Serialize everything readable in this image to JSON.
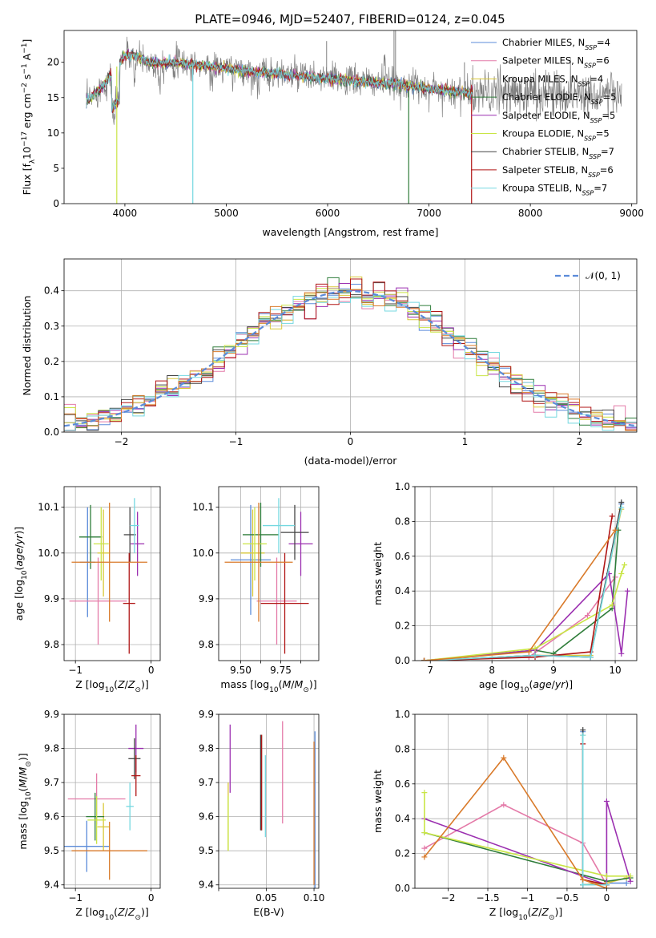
{
  "figure": {
    "title": "PLATE=0946, MJD=52407, FIBERID=0124, z=0.045"
  },
  "colors": {
    "Chabrier MILES": "#5b8bd9",
    "Salpeter MILES": "#e47aa8",
    "Kroupa MILES": "#d9c83a",
    "Chabrier ELODIE": "#2f7d3a",
    "Salpeter ELODIE": "#9b2fb0",
    "Kroupa ELODIE": "#c9e545",
    "Chabrier STELIB": "#444444",
    "Salpeter STELIB": "#b01515",
    "Kroupa STELIB": "#74d8e0",
    "orange": "#d97a2a",
    "gray_data": "#808080",
    "normal_curve": "#5b8bd9"
  },
  "chart_data": [
    {
      "id": "spectrum",
      "type": "line",
      "xlabel": "wavelength [Angstrom, rest frame]",
      "ylabel": "Flux [f_λ 10^-17 erg cm^-2 s^-1 A^-1]",
      "xlim": [
        3400,
        9050
      ],
      "ylim": [
        0,
        24.5
      ],
      "xticks": [
        4000,
        5000,
        6000,
        7000,
        8000,
        9000
      ],
      "yticks": [
        0,
        5,
        10,
        15,
        20
      ],
      "legend_position": "upper right",
      "legend": [
        {
          "name": "Chabrier MILES",
          "nssp": "4"
        },
        {
          "name": "Salpeter MILES",
          "nssp": "6"
        },
        {
          "name": "Kroupa MILES",
          "nssp": "4"
        },
        {
          "name": "Chabrier ELODIE",
          "nssp": "5"
        },
        {
          "name": "Salpeter ELODIE",
          "nssp": "5"
        },
        {
          "name": "Kroupa ELODIE",
          "nssp": "5"
        },
        {
          "name": "Chabrier STELIB",
          "nssp": "7"
        },
        {
          "name": "Salpeter STELIB",
          "nssp": "6"
        },
        {
          "name": "Kroupa STELIB",
          "nssp": "7"
        }
      ],
      "continuum_x": [
        3620,
        3700,
        3800,
        3900,
        4000,
        4100,
        4200,
        4300,
        4400,
        4500,
        4700,
        4900,
        5100,
        5300,
        5500,
        5700,
        5900,
        6100,
        6300,
        6500,
        6700,
        6900,
        7100,
        7300,
        7420
      ],
      "continuum_y": [
        14.5,
        15.5,
        17.0,
        19.0,
        21.0,
        21.0,
        20.2,
        19.8,
        20.0,
        20.0,
        19.6,
        19.3,
        18.9,
        18.6,
        18.4,
        18.1,
        17.8,
        17.6,
        17.3,
        17.1,
        16.9,
        16.5,
        16.1,
        15.8,
        15.6
      ]
    },
    {
      "id": "residuals",
      "type": "line",
      "xlabel": "(data-model)/error",
      "ylabel": "Normed distribution",
      "xlim": [
        -2.5,
        2.5
      ],
      "ylim": [
        0,
        0.49
      ],
      "xticks": [
        -2,
        -1,
        0,
        1,
        2
      ],
      "yticks": [
        0.0,
        0.1,
        0.2,
        0.3,
        0.4
      ],
      "legend": [
        "𝒩(0, 1)"
      ],
      "bin_width": 0.1,
      "gaussian": {
        "mu": 0,
        "sigma": 1
      }
    },
    {
      "id": "age_vs_Z",
      "type": "scatter",
      "xlabel": "Z [log10(Z/Z⊙)]",
      "ylabel": "age  [log10(age/yr)]",
      "xlim": [
        -1.15,
        0.12
      ],
      "ylim": [
        9.765,
        10.145
      ],
      "xticks": [
        -1,
        0
      ],
      "yticks": [
        9.8,
        9.9,
        10.0,
        10.1
      ],
      "points": [
        {
          "series": "Chabrier MILES",
          "x": -0.84,
          "y": 9.98,
          "xerr": 0.1,
          "yerr": 0.12
        },
        {
          "series": "Salpeter MILES",
          "x": -0.7,
          "y": 9.895,
          "xerr": 0.38,
          "yerr": 0.095
        },
        {
          "series": "Kroupa MILES",
          "x": -0.63,
          "y": 10.0,
          "xerr": 0.08,
          "yerr": 0.095
        },
        {
          "series": "Chabrier ELODIE",
          "x": -0.8,
          "y": 10.035,
          "xerr": 0.15,
          "yerr": 0.07
        },
        {
          "series": "Salpeter ELODIE",
          "x": -0.18,
          "y": 10.02,
          "xerr": 0.09,
          "yerr": 0.07
        },
        {
          "series": "Kroupa ELODIE",
          "x": -0.66,
          "y": 10.02,
          "xerr": 0.1,
          "yerr": 0.08
        },
        {
          "series": "Chabrier STELIB",
          "x": -0.28,
          "y": 10.04,
          "xerr": 0.08,
          "yerr": 0.06
        },
        {
          "series": "Salpeter STELIB",
          "x": -0.29,
          "y": 9.89,
          "xerr": 0.08,
          "yerr": 0.11
        },
        {
          "series": "Kroupa STELIB",
          "x": -0.22,
          "y": 10.06,
          "xerr": 0.06,
          "yerr": 0.06
        },
        {
          "series": "orange",
          "x": -0.55,
          "y": 9.98,
          "xerr": 0.5,
          "yerr": 0.13
        }
      ]
    },
    {
      "id": "age_vs_mass",
      "type": "scatter",
      "xlabel": "mass [log10(M/M⊙)]",
      "ylabel": "",
      "xlim": [
        9.39,
        9.89
      ],
      "ylim": [
        9.765,
        10.145
      ],
      "xticks": [
        9.5,
        9.6,
        9.7,
        9.8
      ],
      "xticklabels": [
        "9.50",
        "",
        "9.75",
        ""
      ],
      "yticks": [
        9.8,
        9.9,
        10.0,
        10.1
      ],
      "points": [
        {
          "series": "Chabrier MILES",
          "x": 9.55,
          "y": 9.985,
          "xerr": 0.1,
          "yerr": 0.12
        },
        {
          "series": "Salpeter MILES",
          "x": 9.68,
          "y": 9.895,
          "xerr": 0.1,
          "yerr": 0.095
        },
        {
          "series": "Kroupa MILES",
          "x": 9.56,
          "y": 10.0,
          "xerr": 0.06,
          "yerr": 0.095
        },
        {
          "series": "Chabrier ELODIE",
          "x": 9.6,
          "y": 10.04,
          "xerr": 0.09,
          "yerr": 0.07
        },
        {
          "series": "Salpeter ELODIE",
          "x": 9.8,
          "y": 10.02,
          "xerr": 0.06,
          "yerr": 0.07
        },
        {
          "series": "Kroupa ELODIE",
          "x": 9.57,
          "y": 10.02,
          "xerr": 0.06,
          "yerr": 0.08
        },
        {
          "series": "Chabrier STELIB",
          "x": 9.77,
          "y": 10.045,
          "xerr": 0.07,
          "yerr": 0.06
        },
        {
          "series": "Salpeter STELIB",
          "x": 9.72,
          "y": 9.89,
          "xerr": 0.12,
          "yerr": 0.11
        },
        {
          "series": "Kroupa STELIB",
          "x": 9.69,
          "y": 10.06,
          "xerr": 0.08,
          "yerr": 0.06
        },
        {
          "series": "orange",
          "x": 9.59,
          "y": 9.98,
          "xerr": 0.17,
          "yerr": 0.13
        }
      ]
    },
    {
      "id": "weight_vs_age",
      "type": "line",
      "xlabel": "age  [log10(age/yr)]",
      "ylabel": "mass weight",
      "xlim": [
        6.75,
        10.35
      ],
      "ylim": [
        0,
        1.0
      ],
      "xticks": [
        7,
        8,
        9,
        10
      ],
      "yticks": [
        0.0,
        0.2,
        0.4,
        0.6,
        0.8,
        1.0
      ],
      "series": [
        {
          "name": "Chabrier MILES",
          "x": [
            6.9,
            8.7,
            9.6,
            10.1
          ],
          "y": [
            0.0,
            0.03,
            0.02,
            0.9
          ]
        },
        {
          "name": "Salpeter MILES",
          "x": [
            6.9,
            8.6,
            9.55,
            10.0
          ],
          "y": [
            0.0,
            0.02,
            0.26,
            0.48
          ]
        },
        {
          "name": "Kroupa MILES",
          "x": [
            6.9,
            8.7,
            9.6,
            10.1
          ],
          "y": [
            0.0,
            0.03,
            0.03,
            0.87
          ]
        },
        {
          "name": "Chabrier ELODIE",
          "x": [
            6.9,
            8.7,
            9.0,
            9.95,
            10.05
          ],
          "y": [
            0.0,
            0.06,
            0.04,
            0.3,
            0.75
          ]
        },
        {
          "name": "Salpeter ELODIE",
          "x": [
            6.9,
            8.7,
            9.9,
            10.1,
            10.2
          ],
          "y": [
            0.0,
            0.06,
            0.5,
            0.04,
            0.4
          ]
        },
        {
          "name": "Kroupa ELODIE",
          "x": [
            6.9,
            8.7,
            9.95,
            10.1,
            10.15
          ],
          "y": [
            0.0,
            0.07,
            0.32,
            0.5,
            0.55
          ]
        },
        {
          "name": "Chabrier STELIB",
          "x": [
            6.9,
            8.7,
            9.6,
            10.1
          ],
          "y": [
            0.0,
            0.03,
            0.02,
            0.91
          ]
        },
        {
          "name": "Salpeter STELIB",
          "x": [
            6.9,
            8.7,
            9.6,
            9.95
          ],
          "y": [
            0.0,
            0.02,
            0.05,
            0.83
          ]
        },
        {
          "name": "Kroupa STELIB",
          "x": [
            6.9,
            8.7,
            9.6,
            10.1
          ],
          "y": [
            0.0,
            0.03,
            0.02,
            0.88
          ]
        },
        {
          "name": "orange",
          "x": [
            6.9,
            8.6,
            10.0
          ],
          "y": [
            0.0,
            0.05,
            0.75
          ]
        }
      ]
    },
    {
      "id": "mass_vs_Z",
      "type": "scatter",
      "xlabel": "Z [log10(Z/Z⊙)]",
      "ylabel": "mass [log10(M/M⊙)]",
      "xlim": [
        -1.15,
        0.12
      ],
      "ylim": [
        9.39,
        9.9
      ],
      "xticks": [
        -1,
        0
      ],
      "yticks": [
        9.4,
        9.5,
        9.6,
        9.7,
        9.8,
        9.9
      ],
      "points": [
        {
          "series": "Chabrier MILES",
          "x": -0.85,
          "y": 9.513,
          "xerr": 0.3,
          "yerr": 0.075
        },
        {
          "series": "Salpeter MILES",
          "x": -0.72,
          "y": 9.652,
          "xerr": 0.38,
          "yerr": 0.075
        },
        {
          "series": "Kroupa MILES",
          "x": -0.63,
          "y": 9.57,
          "xerr": 0.08,
          "yerr": 0.07
        },
        {
          "series": "Chabrier ELODIE",
          "x": -0.74,
          "y": 9.6,
          "xerr": 0.12,
          "yerr": 0.07
        },
        {
          "series": "Salpeter ELODIE",
          "x": -0.2,
          "y": 9.8,
          "xerr": 0.1,
          "yerr": 0.07
        },
        {
          "series": "Kroupa ELODIE",
          "x": -0.72,
          "y": 9.59,
          "xerr": 0.12,
          "yerr": 0.07
        },
        {
          "series": "Chabrier STELIB",
          "x": -0.22,
          "y": 9.77,
          "xerr": 0.08,
          "yerr": 0.06
        },
        {
          "series": "Salpeter STELIB",
          "x": -0.2,
          "y": 9.72,
          "xerr": 0.06,
          "yerr": 0.06
        },
        {
          "series": "Kroupa STELIB",
          "x": -0.28,
          "y": 9.63,
          "xerr": 0.05,
          "yerr": 0.07
        },
        {
          "series": "orange",
          "x": -0.55,
          "y": 9.5,
          "xerr": 0.5,
          "yerr": 0.085
        }
      ]
    },
    {
      "id": "mass_vs_ebv",
      "type": "scatter",
      "xlabel": "E(B-V)",
      "ylabel": "",
      "xlim": [
        0.0,
        0.105
      ],
      "ylim": [
        9.39,
        9.9
      ],
      "xticks": [
        0.0,
        0.05,
        0.1
      ],
      "xticklabels": [
        "",
        "0.05",
        "0.10"
      ],
      "yticks": [
        9.4,
        9.5,
        9.6,
        9.7,
        9.8,
        9.9
      ],
      "points": [
        {
          "series": "Chabrier MILES",
          "x": 0.101,
          "y": 9.58,
          "yerr": 0.27
        },
        {
          "series": "Salpeter MILES",
          "x": 0.067,
          "y": 9.73,
          "yerr": 0.15
        },
        {
          "series": "Kroupa MILES",
          "x": 0.01,
          "y": 9.6,
          "yerr": 0.1
        },
        {
          "series": "Chabrier ELODIE",
          "x": 0.045,
          "y": 9.7,
          "yerr": 0.14
        },
        {
          "series": "Salpeter ELODIE",
          "x": 0.012,
          "y": 9.77,
          "yerr": 0.1
        },
        {
          "series": "Kroupa ELODIE",
          "x": 0.01,
          "y": 9.58,
          "yerr": 0.08
        },
        {
          "series": "Chabrier STELIB",
          "x": 0.044,
          "y": 9.7,
          "yerr": 0.14
        },
        {
          "series": "Salpeter STELIB",
          "x": 0.045,
          "y": 9.7,
          "yerr": 0.14
        },
        {
          "series": "Kroupa STELIB",
          "x": 0.049,
          "y": 9.66,
          "yerr": 0.12
        },
        {
          "series": "orange",
          "x": 0.1,
          "y": 9.61,
          "yerr": 0.21
        }
      ]
    },
    {
      "id": "weight_vs_Z",
      "type": "line",
      "xlabel": "Z [log10(Z/Z⊙)]",
      "ylabel": "mass weight",
      "xlim": [
        -2.42,
        0.38
      ],
      "ylim": [
        0,
        1.0
      ],
      "xticks": [
        -2.0,
        -1.5,
        -1.0,
        -0.5,
        0.0
      ],
      "yticks": [
        0.0,
        0.2,
        0.4,
        0.6,
        0.8,
        1.0
      ],
      "series": [
        {
          "name": "Chabrier MILES",
          "x": [
            -0.3,
            -0.3,
            0.0,
            0.25
          ],
          "y": [
            0.9,
            0.02,
            0.03,
            0.03
          ]
        },
        {
          "name": "Salpeter MILES",
          "x": [
            -2.3,
            -1.3,
            -0.3,
            0.0
          ],
          "y": [
            0.23,
            0.48,
            0.26,
            0.02
          ]
        },
        {
          "name": "Kroupa MILES",
          "x": [
            -0.3,
            -0.3,
            0.0,
            0.25
          ],
          "y": [
            0.88,
            0.02,
            0.03,
            0.06
          ]
        },
        {
          "name": "Chabrier ELODIE",
          "x": [
            -2.3,
            0.0,
            0.3
          ],
          "y": [
            0.32,
            0.04,
            0.06
          ]
        },
        {
          "name": "Salpeter ELODIE",
          "x": [
            -2.3,
            0.0,
            0.0,
            0.3
          ],
          "y": [
            0.4,
            0.02,
            0.5,
            0.04
          ]
        },
        {
          "name": "Kroupa ELODIE",
          "x": [
            -2.3,
            -2.3,
            0.0,
            0.3
          ],
          "y": [
            0.55,
            0.32,
            0.07,
            0.07
          ]
        },
        {
          "name": "Chabrier STELIB",
          "x": [
            -0.3,
            -0.3,
            0.0
          ],
          "y": [
            0.91,
            0.02,
            0.02
          ]
        },
        {
          "name": "Salpeter STELIB",
          "x": [
            -0.3,
            -0.3,
            0.0
          ],
          "y": [
            0.83,
            0.05,
            0.02
          ]
        },
        {
          "name": "Kroupa STELIB",
          "x": [
            -0.3,
            -0.3,
            0.0
          ],
          "y": [
            0.88,
            0.02,
            0.02
          ]
        },
        {
          "name": "orange",
          "x": [
            -2.3,
            -1.3,
            -0.3,
            0.0
          ],
          "y": [
            0.18,
            0.75,
            0.05,
            0.0
          ]
        }
      ]
    }
  ]
}
